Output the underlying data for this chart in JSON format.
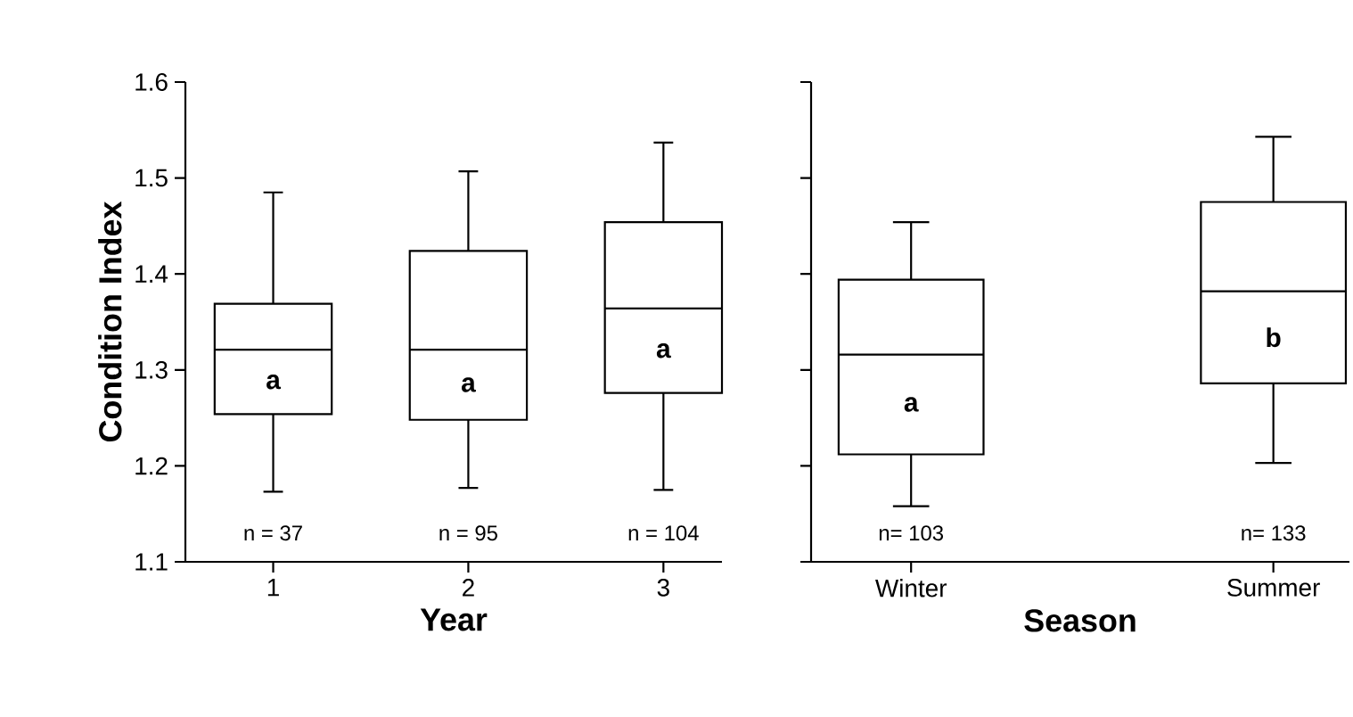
{
  "chart_data": [
    {
      "type": "box",
      "xlabel": "Year",
      "ylabel": "Condition Index",
      "categories": [
        "1",
        "2",
        "3"
      ],
      "boxes": [
        {
          "low": 1.173,
          "q1": 1.254,
          "median": 1.321,
          "q3": 1.369,
          "high": 1.485
        },
        {
          "low": 1.177,
          "q1": 1.248,
          "median": 1.321,
          "q3": 1.424,
          "high": 1.507
        },
        {
          "low": 1.175,
          "q1": 1.276,
          "median": 1.364,
          "q3": 1.454,
          "high": 1.537
        }
      ],
      "ylim": [
        1.1,
        1.6
      ],
      "yticks": [
        1.1,
        1.2,
        1.3,
        1.4,
        1.5,
        1.6
      ],
      "annotations": [
        "a",
        "a",
        "a",
        "n = 37",
        "n = 95",
        "n = 104"
      ]
    },
    {
      "type": "box",
      "xlabel": "Season",
      "categories": [
        "Winter",
        "Summer"
      ],
      "boxes": [
        {
          "low": 1.158,
          "q1": 1.212,
          "median": 1.316,
          "q3": 1.394,
          "high": 1.454
        },
        {
          "low": 1.203,
          "q1": 1.286,
          "median": 1.382,
          "q3": 1.475,
          "high": 1.543
        }
      ],
      "ylim": [
        1.1,
        1.6
      ],
      "yticks": [
        1.1,
        1.2,
        1.3,
        1.4,
        1.5,
        1.6
      ],
      "tick_labels": "x",
      "annotations": [
        "a",
        "b",
        "n= 103",
        "n= 133"
      ]
    }
  ]
}
